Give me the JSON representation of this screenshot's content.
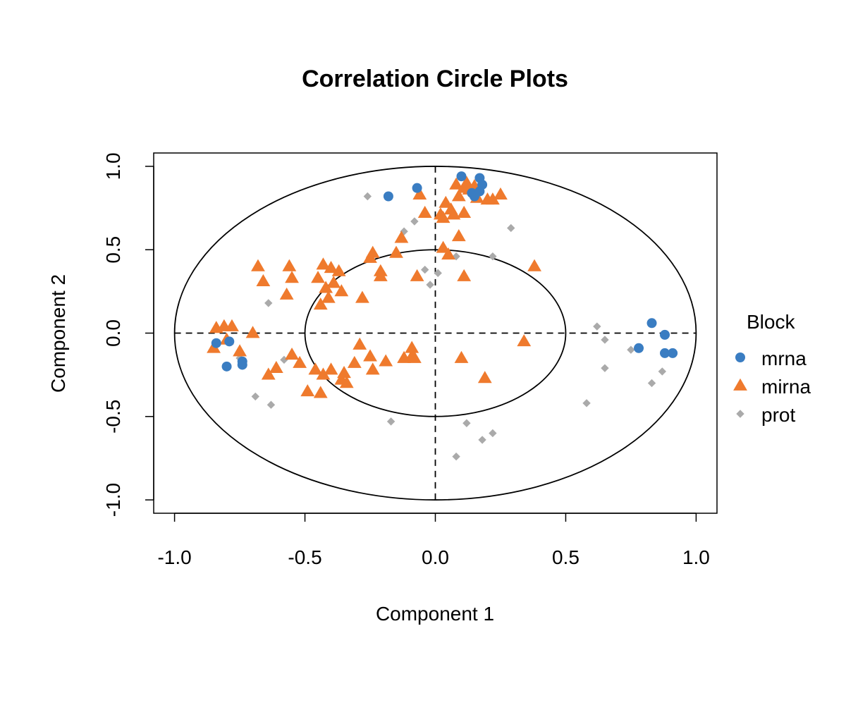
{
  "chart_data": {
    "type": "scatter",
    "title": "Correlation Circle Plots",
    "xlabel": "Component  1",
    "ylabel": "Component  2",
    "xlim": [
      -1.08,
      1.08
    ],
    "ylim": [
      -1.08,
      1.08
    ],
    "xticks": [
      -1.0,
      -0.5,
      0.0,
      0.5,
      1.0
    ],
    "xtick_labels": [
      "-1.0",
      "-0.5",
      "0.0",
      "0.5",
      "1.0"
    ],
    "yticks": [
      -1.0,
      -0.5,
      0.0,
      0.5,
      1.0
    ],
    "ytick_labels": [
      "-1.0",
      "-0.5",
      "0.0",
      "0.5",
      "1.0"
    ],
    "grid": false,
    "circles": [
      1.0,
      0.5
    ],
    "reference_lines": {
      "x": 0,
      "y": 0,
      "style": "dashed"
    },
    "legend": {
      "title": "Block",
      "position": "right"
    },
    "series": [
      {
        "name": "mrna",
        "marker": "circle",
        "color": "#3a7dc2",
        "points": [
          [
            -0.84,
            -0.06
          ],
          [
            -0.8,
            -0.2
          ],
          [
            -0.79,
            -0.05
          ],
          [
            -0.74,
            -0.17
          ],
          [
            -0.74,
            -0.19
          ],
          [
            -0.18,
            0.82
          ],
          [
            -0.07,
            0.87
          ],
          [
            0.1,
            0.94
          ],
          [
            0.14,
            0.84
          ],
          [
            0.15,
            0.82
          ],
          [
            0.17,
            0.93
          ],
          [
            0.17,
            0.85
          ],
          [
            0.18,
            0.89
          ],
          [
            0.78,
            -0.09
          ],
          [
            0.83,
            0.06
          ],
          [
            0.88,
            -0.01
          ],
          [
            0.88,
            -0.12
          ],
          [
            0.91,
            -0.12
          ]
        ]
      },
      {
        "name": "mirna",
        "marker": "triangle",
        "color": "#ef7a2d",
        "points": [
          [
            -0.85,
            -0.09
          ],
          [
            -0.84,
            0.03
          ],
          [
            -0.81,
            0.04
          ],
          [
            -0.8,
            -0.04
          ],
          [
            -0.78,
            0.04
          ],
          [
            -0.75,
            -0.11
          ],
          [
            -0.7,
            0.0
          ],
          [
            -0.68,
            0.4
          ],
          [
            -0.66,
            0.31
          ],
          [
            -0.64,
            -0.25
          ],
          [
            -0.61,
            -0.21
          ],
          [
            -0.56,
            0.4
          ],
          [
            -0.57,
            0.23
          ],
          [
            -0.55,
            0.33
          ],
          [
            -0.55,
            -0.13
          ],
          [
            -0.52,
            -0.18
          ],
          [
            -0.49,
            -0.35
          ],
          [
            -0.46,
            -0.22
          ],
          [
            -0.45,
            0.33
          ],
          [
            -0.44,
            0.17
          ],
          [
            -0.43,
            0.41
          ],
          [
            -0.42,
            0.27
          ],
          [
            -0.41,
            0.21
          ],
          [
            -0.4,
            0.39
          ],
          [
            -0.39,
            0.3
          ],
          [
            -0.37,
            0.37
          ],
          [
            -0.36,
            0.25
          ],
          [
            -0.44,
            -0.36
          ],
          [
            -0.43,
            -0.25
          ],
          [
            -0.4,
            -0.22
          ],
          [
            -0.36,
            -0.28
          ],
          [
            -0.35,
            -0.24
          ],
          [
            -0.34,
            -0.3
          ],
          [
            -0.31,
            -0.18
          ],
          [
            -0.29,
            -0.07
          ],
          [
            -0.28,
            0.21
          ],
          [
            -0.25,
            0.45
          ],
          [
            -0.24,
            0.48
          ],
          [
            -0.25,
            -0.14
          ],
          [
            -0.24,
            -0.22
          ],
          [
            -0.21,
            0.37
          ],
          [
            -0.21,
            0.34
          ],
          [
            -0.19,
            -0.17
          ],
          [
            -0.15,
            0.48
          ],
          [
            -0.13,
            0.57
          ],
          [
            -0.12,
            -0.15
          ],
          [
            -0.09,
            -0.14
          ],
          [
            -0.09,
            -0.09
          ],
          [
            -0.08,
            -0.15
          ],
          [
            -0.07,
            0.34
          ],
          [
            -0.06,
            0.83
          ],
          [
            -0.04,
            0.72
          ],
          [
            0.02,
            0.71
          ],
          [
            0.03,
            0.51
          ],
          [
            0.03,
            0.69
          ],
          [
            0.04,
            0.78
          ],
          [
            0.05,
            0.47
          ],
          [
            0.06,
            0.74
          ],
          [
            0.07,
            0.71
          ],
          [
            0.08,
            0.89
          ],
          [
            0.09,
            0.82
          ],
          [
            0.09,
            0.58
          ],
          [
            0.1,
            -0.15
          ],
          [
            0.11,
            0.34
          ],
          [
            0.11,
            0.72
          ],
          [
            0.11,
            0.87
          ],
          [
            0.12,
            0.9
          ],
          [
            0.13,
            0.86
          ],
          [
            0.15,
            0.88
          ],
          [
            0.16,
            0.81
          ],
          [
            0.19,
            -0.27
          ],
          [
            0.2,
            0.8
          ],
          [
            0.22,
            0.8
          ],
          [
            0.25,
            0.83
          ],
          [
            0.34,
            -0.05
          ],
          [
            0.38,
            0.4
          ]
        ]
      },
      {
        "name": "prot",
        "marker": "diamond",
        "color": "#aaaaaa",
        "points": [
          [
            -0.75,
            -0.15
          ],
          [
            -0.69,
            -0.38
          ],
          [
            -0.64,
            0.18
          ],
          [
            -0.63,
            -0.43
          ],
          [
            -0.58,
            -0.16
          ],
          [
            -0.26,
            0.82
          ],
          [
            -0.17,
            -0.53
          ],
          [
            -0.12,
            0.61
          ],
          [
            -0.08,
            0.67
          ],
          [
            -0.04,
            0.38
          ],
          [
            -0.02,
            0.29
          ],
          [
            0.01,
            0.36
          ],
          [
            0.08,
            -0.74
          ],
          [
            0.08,
            0.46
          ],
          [
            0.12,
            -0.54
          ],
          [
            0.18,
            -0.64
          ],
          [
            0.22,
            -0.6
          ],
          [
            0.22,
            0.46
          ],
          [
            0.29,
            0.63
          ],
          [
            0.58,
            -0.42
          ],
          [
            0.62,
            0.04
          ],
          [
            0.65,
            -0.04
          ],
          [
            0.65,
            -0.21
          ],
          [
            0.75,
            -0.1
          ],
          [
            0.83,
            -0.3
          ],
          [
            0.87,
            -0.23
          ]
        ]
      }
    ]
  }
}
